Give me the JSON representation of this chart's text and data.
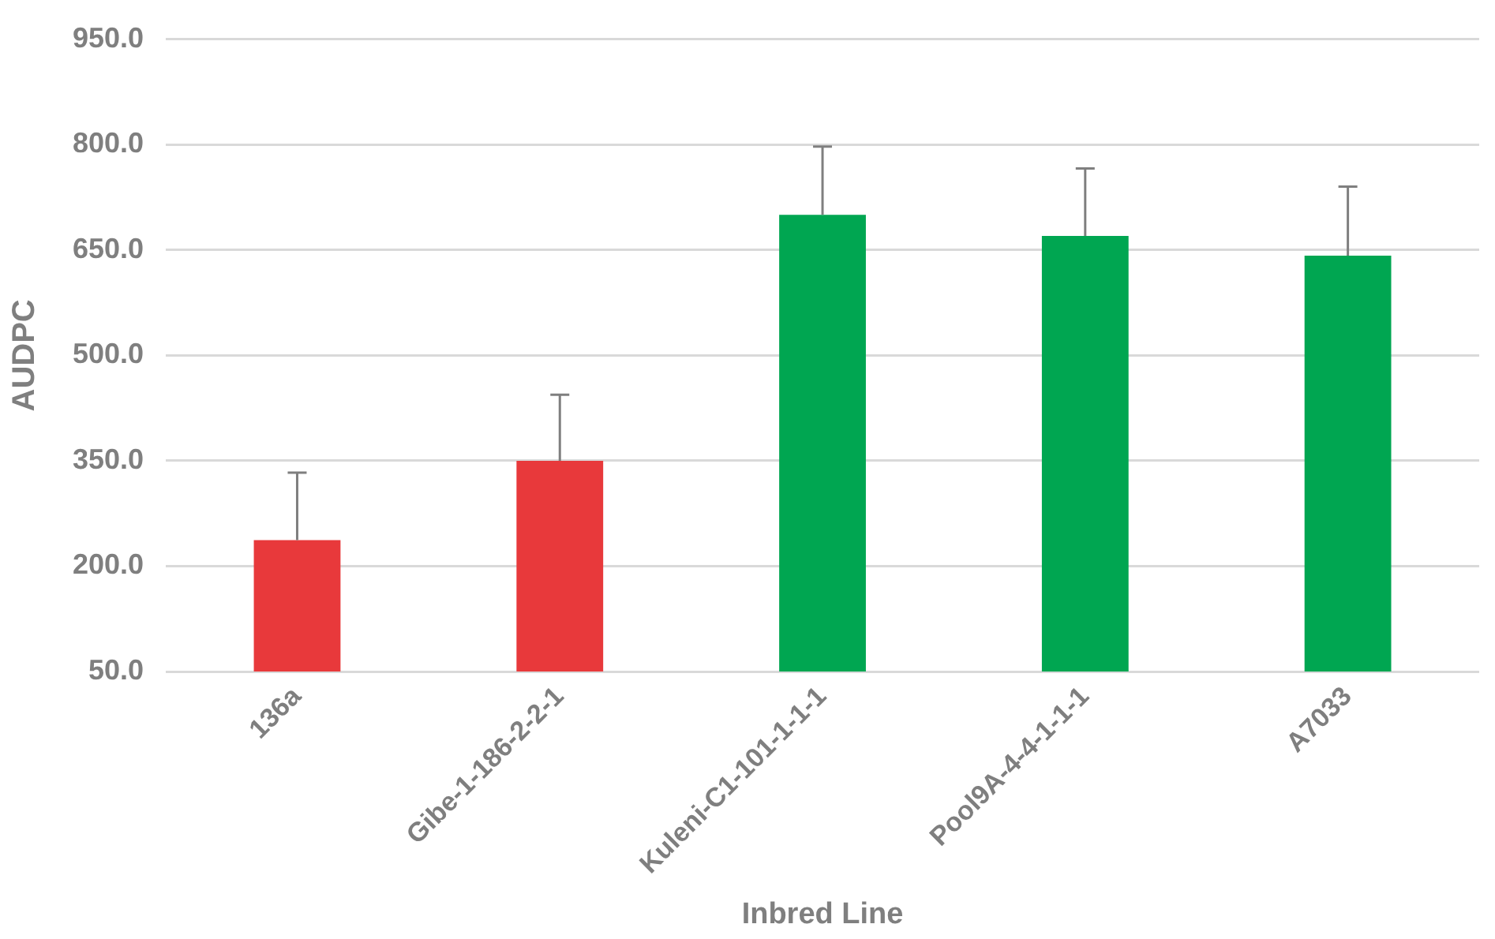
{
  "chart_data": {
    "type": "bar",
    "xlabel": "Inbred Line",
    "ylabel": "AUDPC",
    "categories": [
      "136a",
      "Gibe-1-186-2-2-1",
      "Kuleni-C1-101-1-1-1",
      "Pool9A-4-4-1-1-1",
      "A7033"
    ],
    "values": [
      237,
      350,
      700,
      670,
      642
    ],
    "colors": [
      "#e8393b",
      "#e8393b",
      "#00a651",
      "#00a651",
      "#00a651"
    ],
    "errors": [
      [
        237,
        333
      ],
      [
        350,
        444
      ],
      [
        700,
        797
      ],
      [
        670,
        766
      ],
      [
        642,
        740
      ]
    ],
    "ylim": [
      50,
      950
    ],
    "yticks": [
      {
        "value": 50,
        "label": "50.0"
      },
      {
        "value": 200,
        "label": "200.0"
      },
      {
        "value": 350,
        "label": "350.0"
      },
      {
        "value": 500,
        "label": "500.0"
      },
      {
        "value": 650,
        "label": "650.0"
      },
      {
        "value": 800,
        "label": "800.0"
      },
      {
        "value": 950,
        "label": "950.0"
      }
    ],
    "grid": "y"
  }
}
